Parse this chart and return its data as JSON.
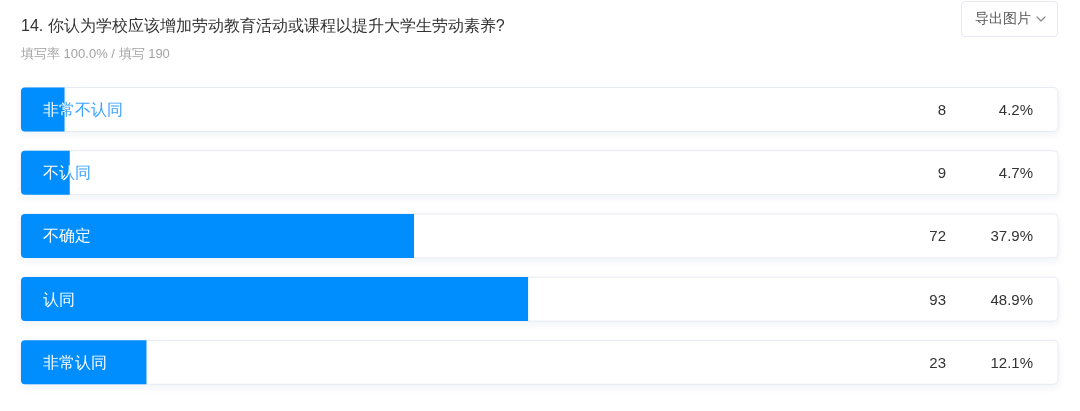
{
  "chart_data": {
    "type": "bar",
    "orientation": "horizontal",
    "title": "14. 你认为学校应该增加劳动教育活动或课程以提升大学生劳动素养?",
    "subtitle": "填写率 100.0% / 填写 190",
    "categories": [
      "非常不认同",
      "不认同",
      "不确定",
      "认同",
      "非常认同"
    ],
    "values": [
      4.2,
      4.7,
      37.9,
      48.9,
      12.1
    ],
    "value_labels": [
      "4.2%",
      "4.7%",
      "37.9%",
      "48.9%",
      "12.1%"
    ],
    "color": "#008eff",
    "xlim": [
      0,
      100
    ],
    "tick_labels": "y",
    "annotations": [
      "8",
      "9",
      "72",
      "93",
      "23",
      "导出图片"
    ]
  }
}
